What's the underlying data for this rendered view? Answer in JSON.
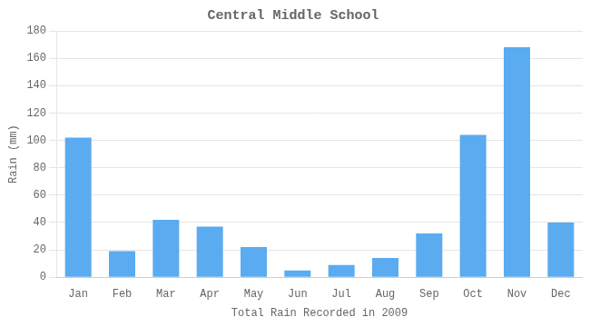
{
  "chart_data": {
    "type": "bar",
    "title": "Central Middle School",
    "xlabel": "Total Rain Recorded in 2009",
    "ylabel": "Rain (mm)",
    "categories": [
      "Jan",
      "Feb",
      "Mar",
      "Apr",
      "May",
      "Jun",
      "Jul",
      "Aug",
      "Sep",
      "Oct",
      "Nov",
      "Dec"
    ],
    "values": [
      102,
      19,
      42,
      37,
      22,
      5,
      9,
      14,
      32,
      104,
      168,
      40
    ],
    "color": "#5aabf0",
    "ylim": [
      0,
      180
    ],
    "yticks": [
      0,
      20,
      40,
      60,
      80,
      100,
      120,
      140,
      160,
      180
    ],
    "grid": true
  }
}
